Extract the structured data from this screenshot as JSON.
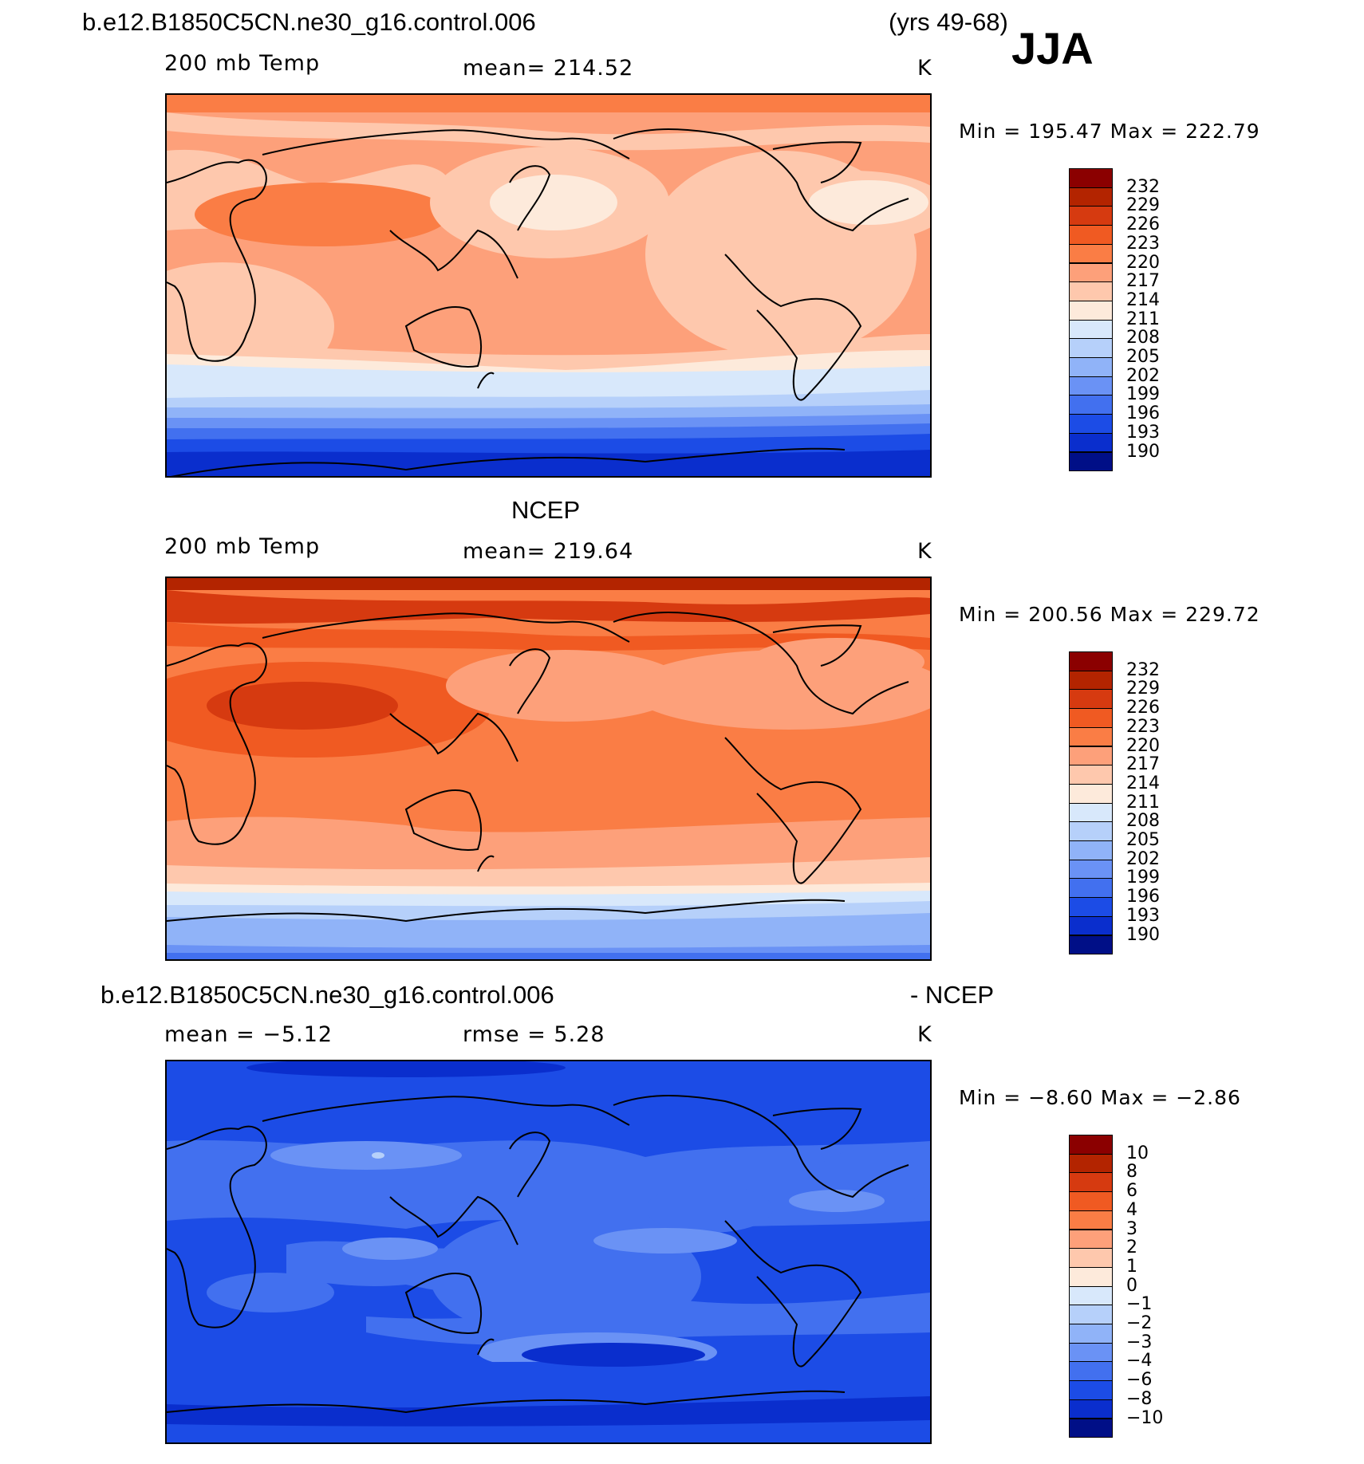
{
  "figure": {
    "case_title": "b.e12.B1850C5CN.ne30_g16.control.006",
    "years": "(yrs 49-68)",
    "season": "JJA"
  },
  "panels": [
    {
      "id": "model",
      "title": "",
      "variable": "200 mb Temp",
      "stat": "mean=  214.52",
      "units": "K",
      "min_max": "Min  =  195.47  Max  =  222.79",
      "colorbar": {
        "levels": [
          "232",
          "229",
          "226",
          "223",
          "220",
          "217",
          "214",
          "211",
          "208",
          "205",
          "202",
          "199",
          "196",
          "193",
          "190"
        ],
        "colors": [
          "#8b0000",
          "#b32400",
          "#d63a10",
          "#f05a22",
          "#fa7d45",
          "#fda07a",
          "#fec8ad",
          "#fdeadb",
          "#d8e8fb",
          "#b6d0fa",
          "#90b3f8",
          "#6a92f5",
          "#4270ef",
          "#1c4ce6",
          "#0a2ecd",
          "#000f87"
        ]
      }
    },
    {
      "id": "obs",
      "title": "NCEP",
      "variable": "200 mb Temp",
      "stat": "mean=  219.64",
      "units": "K",
      "min_max": "Min  =  200.56  Max  =  229.72",
      "colorbar": {
        "levels": [
          "232",
          "229",
          "226",
          "223",
          "220",
          "217",
          "214",
          "211",
          "208",
          "205",
          "202",
          "199",
          "196",
          "193",
          "190"
        ],
        "colors": [
          "#8b0000",
          "#b32400",
          "#d63a10",
          "#f05a22",
          "#fa7d45",
          "#fda07a",
          "#fec8ad",
          "#fdeadb",
          "#d8e8fb",
          "#b6d0fa",
          "#90b3f8",
          "#6a92f5",
          "#4270ef",
          "#1c4ce6",
          "#0a2ecd",
          "#000f87"
        ]
      }
    },
    {
      "id": "diff",
      "title": "b.e12.B1850C5CN.ne30_g16.control.006",
      "title_right": "- NCEP",
      "variable": "mean  =    −5.12",
      "stat": "rmse  =     5.28",
      "units": "K",
      "min_max": "Min  =   −8.60  Max  =   −2.86",
      "colorbar": {
        "levels": [
          "10",
          "8",
          "6",
          "4",
          "3",
          "2",
          "1",
          "0",
          "−1",
          "−2",
          "−3",
          "−4",
          "−6",
          "−8",
          "−10"
        ],
        "colors": [
          "#8b0000",
          "#b32400",
          "#d63a10",
          "#f05a22",
          "#fa7d45",
          "#fda07a",
          "#fec8ad",
          "#fdeadb",
          "#d8e8fb",
          "#b6d0fa",
          "#90b3f8",
          "#6a92f5",
          "#4270ef",
          "#1c4ce6",
          "#0a2ecd",
          "#000f87"
        ]
      }
    }
  ]
}
